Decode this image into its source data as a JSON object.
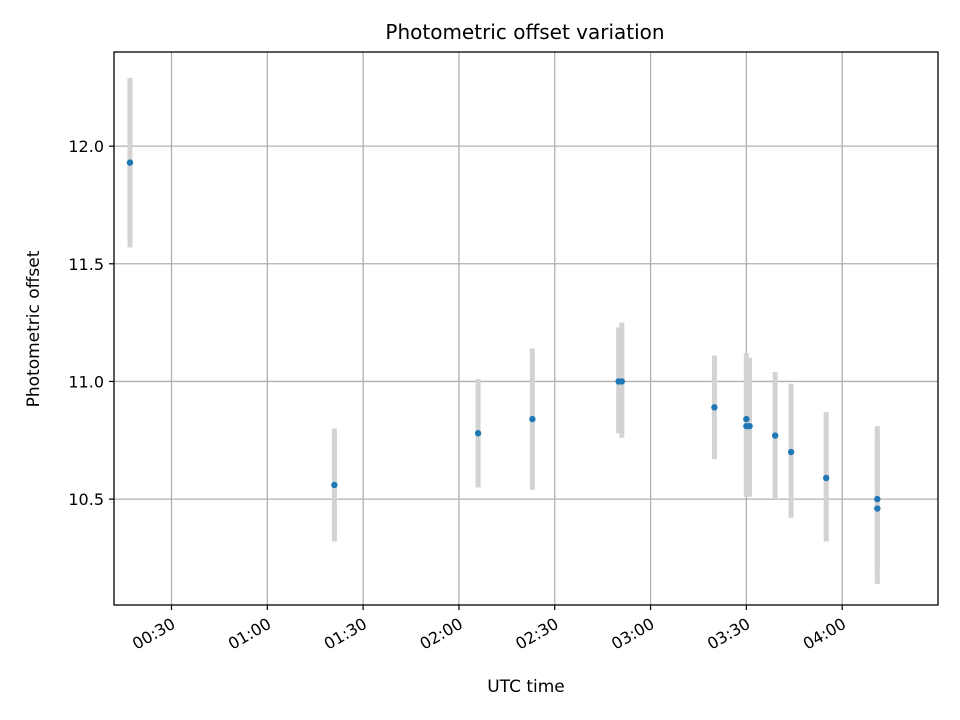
{
  "chart_data": {
    "type": "scatter",
    "title": "Photometric offset variation",
    "xlabel": "UTC time",
    "ylabel": "Photometric offset",
    "x_axis_kind": "time (HH:MM, UTC)",
    "xlim": [
      "00:12",
      "04:30"
    ],
    "ylim": [
      10.05,
      12.4
    ],
    "x_ticks": [
      "00:30",
      "01:00",
      "01:30",
      "02:00",
      "02:30",
      "03:00",
      "03:30",
      "04:00"
    ],
    "y_ticks": [
      10.5,
      11.0,
      11.5,
      12.0
    ],
    "y_tick_labels": [
      "10.5",
      "11.0",
      "11.5",
      "12.0"
    ],
    "grid": true,
    "legend": "none",
    "colors": {
      "marker": "#1f77b4",
      "errorbar": "#d3d3d3"
    },
    "points": [
      {
        "x": "00:17",
        "y": 11.93,
        "err_low": 11.57,
        "err_high": 12.29
      },
      {
        "x": "01:21",
        "y": 10.56,
        "err_low": 10.32,
        "err_high": 10.8
      },
      {
        "x": "02:06",
        "y": 10.78,
        "err_low": 10.55,
        "err_high": 11.01
      },
      {
        "x": "02:23",
        "y": 10.84,
        "err_low": 10.54,
        "err_high": 11.14
      },
      {
        "x": "02:50",
        "y": 11.0,
        "err_low": 10.78,
        "err_high": 11.23
      },
      {
        "x": "02:51",
        "y": 11.0,
        "err_low": 10.76,
        "err_high": 11.25
      },
      {
        "x": "03:20",
        "y": 10.89,
        "err_low": 10.67,
        "err_high": 11.11
      },
      {
        "x": "03:30",
        "y": 10.84,
        "err_low": 10.52,
        "err_high": 11.12
      },
      {
        "x": "03:30",
        "y": 10.81,
        "err_low": 10.51,
        "err_high": 11.11
      },
      {
        "x": "03:31",
        "y": 10.81,
        "err_low": 10.51,
        "err_high": 11.1
      },
      {
        "x": "03:39",
        "y": 10.77,
        "err_low": 10.5,
        "err_high": 11.04
      },
      {
        "x": "03:44",
        "y": 10.7,
        "err_low": 10.42,
        "err_high": 10.99
      },
      {
        "x": "03:55",
        "y": 10.59,
        "err_low": 10.32,
        "err_high": 10.87
      },
      {
        "x": "04:11",
        "y": 10.46,
        "err_low": 10.14,
        "err_high": 10.78
      },
      {
        "x": "04:11",
        "y": 10.5,
        "err_low": 10.21,
        "err_high": 10.81
      }
    ]
  }
}
